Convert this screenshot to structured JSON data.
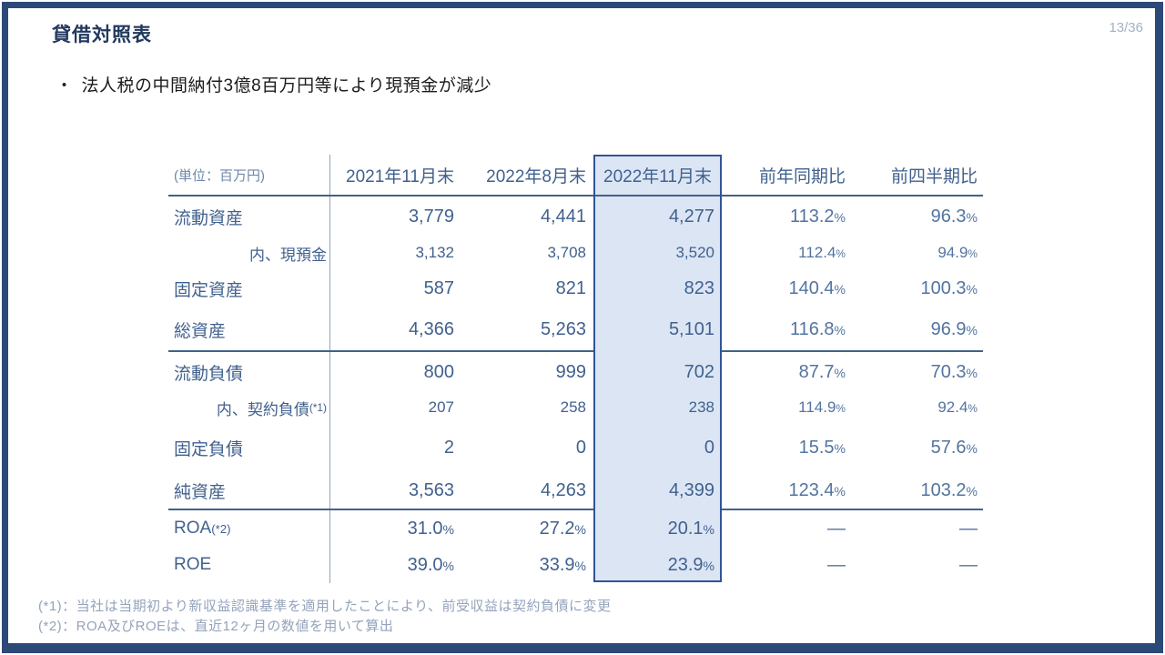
{
  "page": {
    "title": "貸借対照表",
    "page_number": "13/36",
    "bullet_glyph": "・",
    "bullet": "法人税の中間納付3億8百万円等により現預金が減少"
  },
  "table": {
    "unit_label": "(単位：百万円)",
    "columns": [
      "2021年11月末",
      "2022年8月末",
      "2022年11月末",
      "前年同期比",
      "前四半期比"
    ],
    "highlighted_column": "2022年11月末",
    "groups": [
      {
        "rows": [
          {
            "label": "流動資産",
            "sub": false,
            "values": [
              "3,779",
              "4,441",
              "4,277",
              "113.2%",
              "96.3%"
            ]
          },
          {
            "label": "内、現預金",
            "sub": true,
            "values": [
              "3,132",
              "3,708",
              "3,520",
              "112.4%",
              "94.9%"
            ]
          },
          {
            "label": "固定資産",
            "sub": false,
            "values": [
              "587",
              "821",
              "823",
              "140.4%",
              "100.3%"
            ]
          },
          {
            "label": "総資産",
            "sub": false,
            "values": [
              "4,366",
              "5,263",
              "5,101",
              "116.8%",
              "96.9%"
            ]
          }
        ]
      },
      {
        "rows": [
          {
            "label": "流動負債",
            "sub": false,
            "values": [
              "800",
              "999",
              "702",
              "87.7%",
              "70.3%"
            ]
          },
          {
            "label": "内、契約負債(*1)",
            "sub": true,
            "values": [
              "207",
              "258",
              "238",
              "114.9%",
              "92.4%"
            ]
          },
          {
            "label": "固定負債",
            "sub": false,
            "values": [
              "2",
              "0",
              "0",
              "15.5%",
              "57.6%"
            ]
          },
          {
            "label": "純資産",
            "sub": false,
            "values": [
              "3,563",
              "4,263",
              "4,399",
              "123.4%",
              "103.2%"
            ]
          }
        ]
      },
      {
        "rows": [
          {
            "label": "ROA(*2)",
            "sub": false,
            "values": [
              "31.0%",
              "27.2%",
              "20.1%",
              "—",
              "—"
            ]
          },
          {
            "label": "ROE",
            "sub": false,
            "values": [
              "39.0%",
              "33.9%",
              "23.9%",
              "—",
              "—"
            ]
          }
        ]
      }
    ]
  },
  "footnotes": [
    "(*1)：当社は当期初より新収益認識基準を適用したことにより、前受収益は契約負債に変更",
    "(*2)：ROA及びROEは、直近12ヶ月の数値を用いて算出"
  ],
  "colors": {
    "frame": "#2b4a77",
    "title": "#21395f",
    "text": "#1c1c1e",
    "tableText": "#41618e",
    "comparisonText": "#53749f",
    "unitLabel": "#6e87a8",
    "rule": "#416289",
    "divider": "#8fa5c0",
    "highlightFill": "#dbe5f4",
    "highlightBorder": "#2f5496",
    "footnote": "#94a3bb",
    "pageNumber": "#a4b1c4"
  }
}
